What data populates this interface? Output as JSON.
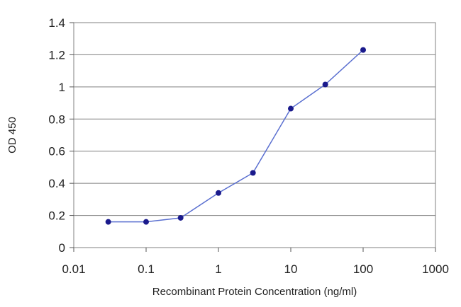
{
  "chart_data": {
    "type": "scatter",
    "title": "",
    "xlabel": "Recombinant Protein Concentration (ng/ml)",
    "ylabel": "OD 450",
    "x_scale": "log",
    "xlim": [
      0.01,
      1000
    ],
    "ylim": [
      0,
      1.4
    ],
    "x_ticks": [
      "0.01",
      "0.1",
      "1",
      "10",
      "100",
      "1000"
    ],
    "y_ticks": [
      "0",
      "0.2",
      "0.4",
      "0.6",
      "0.8",
      "1",
      "1.2",
      "1.4"
    ],
    "grid": "horizontal",
    "legend": "none",
    "connected": true,
    "series": [
      {
        "color": "#1a1a8c",
        "line_color": "#5a6fd0",
        "points": [
          {
            "x": 0.03,
            "y": 0.16
          },
          {
            "x": 0.1,
            "y": 0.16
          },
          {
            "x": 0.3,
            "y": 0.185
          },
          {
            "x": 1,
            "y": 0.34
          },
          {
            "x": 3,
            "y": 0.465
          },
          {
            "x": 10,
            "y": 0.865
          },
          {
            "x": 30,
            "y": 1.015
          },
          {
            "x": 100,
            "y": 1.23
          }
        ]
      }
    ]
  }
}
